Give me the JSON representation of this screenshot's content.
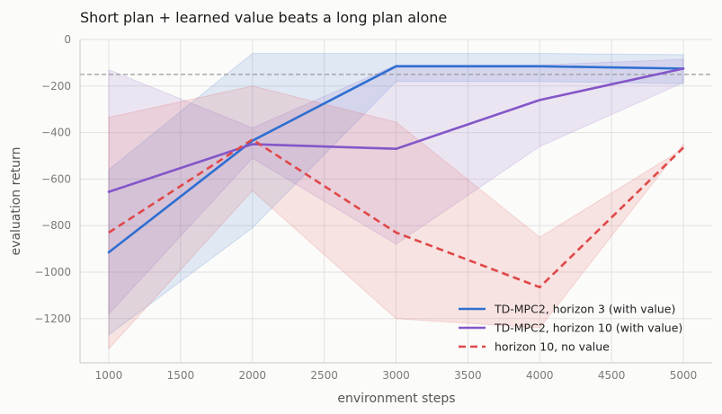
{
  "chart_data": {
    "type": "line",
    "title": "Short plan + learned value beats a long plan alone",
    "xlabel": "environment steps",
    "ylabel": "evaluation return",
    "x": [
      1000,
      2000,
      3000,
      4000,
      5000
    ],
    "xlim": [
      800,
      5200
    ],
    "ylim": [
      -1390,
      0
    ],
    "xticks": [
      "1000",
      "1500",
      "2000",
      "2500",
      "3000",
      "3500",
      "4000",
      "4500",
      "5000"
    ],
    "yticks": [
      "0",
      "−200",
      "−400",
      "−600",
      "−800",
      "−1000",
      "−1200"
    ],
    "reference_line": -150,
    "grid": true,
    "legend_position": "bottom-right",
    "series": [
      {
        "name": "TD-MPC2, horizon 3 (with value)",
        "color": "#2f6fd0",
        "style": "solid",
        "values": [
          -915,
          -435,
          -115,
          -115,
          -125
        ],
        "band_lower": [
          -1270,
          -810,
          -180,
          -180,
          -190
        ],
        "band_upper": [
          -560,
          -60,
          -60,
          -60,
          -65
        ]
      },
      {
        "name": "TD-MPC2, horizon 10 (with value)",
        "color": "#8456c8",
        "style": "solid",
        "values": [
          -655,
          -450,
          -470,
          -260,
          -125
        ],
        "band_lower": [
          -1180,
          -510,
          -880,
          -460,
          -185
        ],
        "band_upper": [
          -130,
          -380,
          -110,
          -110,
          -85
        ]
      },
      {
        "name": "horizon 10, no value",
        "color": "#e04848",
        "style": "dashed",
        "values": [
          -830,
          -430,
          -830,
          -1065,
          -465
        ],
        "band_lower": [
          -1330,
          -650,
          -1200,
          -1240,
          -450
        ],
        "band_upper": [
          -335,
          -200,
          -355,
          -850,
          -470
        ]
      }
    ]
  }
}
